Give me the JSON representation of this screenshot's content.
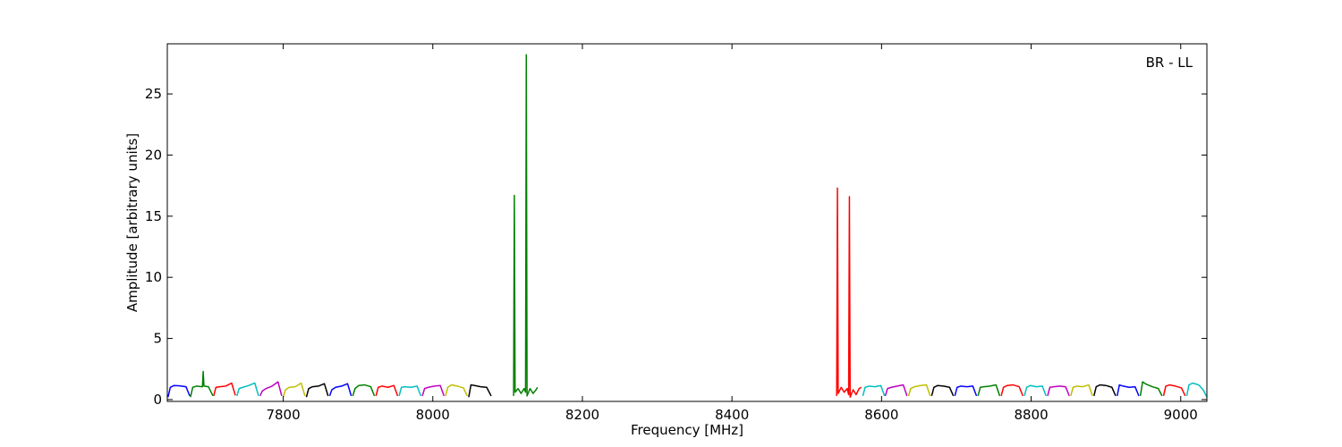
{
  "chart_data": {
    "type": "line",
    "annotation": "BR - LL",
    "x_label": "Frequency [MHz]",
    "y_label": "Amplitude [arbitrary units]",
    "xlim": [
      7645,
      9035
    ],
    "ylim": [
      -0.15,
      29.1
    ],
    "xticks": [
      7800,
      8000,
      8200,
      8400,
      8600,
      8800,
      9000
    ],
    "yticks": [
      0,
      5,
      10,
      15,
      20,
      25
    ],
    "grid": false,
    "series": [
      {
        "color": "#0000ff",
        "x": [
          7646,
          7649,
          7654,
          7662,
          7670,
          7675
        ],
        "values": [
          0.2,
          1.0,
          1.15,
          1.12,
          1.05,
          0.3
        ]
      },
      {
        "color": "#008000",
        "x": [
          7676,
          7679,
          7684,
          7692,
          7693,
          7694,
          7700,
          7706
        ],
        "values": [
          0.2,
          1.0,
          1.1,
          1.05,
          2.3,
          1.1,
          1.05,
          0.3
        ]
      },
      {
        "color": "#ff0000",
        "x": [
          7707,
          7710,
          7715,
          7723,
          7731,
          7736
        ],
        "values": [
          0.3,
          1.0,
          1.05,
          1.1,
          1.35,
          0.35
        ]
      },
      {
        "color": "#00bfbf",
        "x": [
          7738,
          7741,
          7746,
          7754,
          7762,
          7767
        ],
        "values": [
          0.3,
          0.9,
          1.0,
          1.15,
          1.35,
          0.3
        ]
      },
      {
        "color": "#bf00bf",
        "x": [
          7769,
          7772,
          7777,
          7785,
          7793,
          7798
        ],
        "values": [
          0.3,
          0.7,
          0.9,
          1.1,
          1.45,
          0.3
        ]
      },
      {
        "color": "#bfbf00",
        "x": [
          7800,
          7803,
          7808,
          7816,
          7824,
          7829
        ],
        "values": [
          0.2,
          0.8,
          1.0,
          1.05,
          1.35,
          0.3
        ]
      },
      {
        "color": "#000000",
        "x": [
          7831,
          7834,
          7839,
          7847,
          7855,
          7860
        ],
        "values": [
          0.2,
          0.9,
          1.05,
          1.1,
          1.3,
          0.3
        ]
      },
      {
        "color": "#0000ff",
        "x": [
          7862,
          7865,
          7870,
          7878,
          7886,
          7891
        ],
        "values": [
          0.3,
          0.8,
          1.0,
          1.1,
          1.3,
          0.3
        ]
      },
      {
        "color": "#008000",
        "x": [
          7893,
          7896,
          7901,
          7909,
          7917,
          7922
        ],
        "values": [
          0.3,
          0.9,
          1.15,
          1.2,
          1.05,
          0.3
        ]
      },
      {
        "color": "#ff0000",
        "x": [
          7924,
          7927,
          7932,
          7940,
          7948,
          7953
        ],
        "values": [
          0.3,
          1.0,
          1.1,
          1.0,
          1.15,
          0.3
        ]
      },
      {
        "color": "#00bfbf",
        "x": [
          7955,
          7958,
          7963,
          7971,
          7979,
          7984
        ],
        "values": [
          0.3,
          1.0,
          1.05,
          1.0,
          1.1,
          0.3
        ]
      },
      {
        "color": "#bf00bf",
        "x": [
          7986,
          7989,
          7994,
          8002,
          8010,
          8015
        ],
        "values": [
          0.3,
          0.9,
          1.0,
          1.1,
          1.15,
          0.3
        ]
      },
      {
        "color": "#bfbf00",
        "x": [
          8017,
          8020,
          8025,
          8033,
          8041,
          8046
        ],
        "values": [
          0.3,
          1.0,
          1.2,
          1.1,
          0.95,
          0.3
        ]
      },
      {
        "color": "#000000",
        "x": [
          8048,
          8051,
          8056,
          8064,
          8072,
          8078
        ],
        "values": [
          0.2,
          1.2,
          1.15,
          1.05,
          1.0,
          0.3
        ]
      },
      {
        "color": "#008000",
        "x": [
          8108,
          8109,
          8110,
          8114,
          8118,
          8122,
          8124,
          8125,
          8126,
          8130,
          8134,
          8138,
          8140
        ],
        "values": [
          0.3,
          16.7,
          0.6,
          0.9,
          0.5,
          0.9,
          0.6,
          28.2,
          0.3,
          0.9,
          0.5,
          0.8,
          1.0
        ]
      },
      {
        "color": "#ff0000",
        "x": [
          8540,
          8541,
          8542,
          8546,
          8550,
          8554,
          8556,
          8557,
          8558,
          8562,
          8566,
          8570,
          8573
        ],
        "values": [
          0.3,
          17.3,
          0.5,
          1.0,
          0.6,
          0.9,
          0.4,
          16.6,
          0.2,
          0.8,
          0.4,
          0.9,
          1.0
        ]
      },
      {
        "color": "#00bfbf",
        "x": [
          8575,
          8578,
          8583,
          8591,
          8599,
          8604
        ],
        "values": [
          0.3,
          1.0,
          1.1,
          1.05,
          1.15,
          0.3
        ]
      },
      {
        "color": "#bf00bf",
        "x": [
          8605,
          8608,
          8613,
          8621,
          8629,
          8634
        ],
        "values": [
          0.3,
          0.9,
          1.0,
          1.1,
          1.2,
          0.3
        ]
      },
      {
        "color": "#bfbf00",
        "x": [
          8636,
          8639,
          8644,
          8652,
          8660,
          8665
        ],
        "values": [
          0.3,
          0.9,
          1.05,
          1.15,
          1.2,
          0.3
        ]
      },
      {
        "color": "#000000",
        "x": [
          8667,
          8670,
          8675,
          8683,
          8691,
          8696
        ],
        "values": [
          0.3,
          1.0,
          1.15,
          1.1,
          1.0,
          0.3
        ]
      },
      {
        "color": "#0000ff",
        "x": [
          8698,
          8701,
          8706,
          8714,
          8722,
          8727
        ],
        "values": [
          0.3,
          1.0,
          1.1,
          1.05,
          1.1,
          0.3
        ]
      },
      {
        "color": "#008000",
        "x": [
          8729,
          8732,
          8737,
          8745,
          8753,
          8758
        ],
        "values": [
          0.3,
          1.0,
          1.05,
          1.1,
          1.2,
          0.3
        ]
      },
      {
        "color": "#ff0000",
        "x": [
          8760,
          8763,
          8768,
          8776,
          8784,
          8789
        ],
        "values": [
          0.3,
          1.0,
          1.15,
          1.2,
          1.05,
          0.3
        ]
      },
      {
        "color": "#00bfbf",
        "x": [
          8791,
          8794,
          8799,
          8807,
          8815,
          8820
        ],
        "values": [
          0.3,
          1.0,
          1.15,
          1.05,
          1.1,
          0.3
        ]
      },
      {
        "color": "#bf00bf",
        "x": [
          8822,
          8825,
          8830,
          8838,
          8846,
          8851
        ],
        "values": [
          0.3,
          1.0,
          1.05,
          1.1,
          1.05,
          0.3
        ]
      },
      {
        "color": "#bfbf00",
        "x": [
          8853,
          8856,
          8861,
          8869,
          8877,
          8882
        ],
        "values": [
          0.3,
          1.0,
          1.1,
          1.05,
          1.2,
          0.3
        ]
      },
      {
        "color": "#000000",
        "x": [
          8884,
          8887,
          8892,
          8900,
          8908,
          8913
        ],
        "values": [
          0.3,
          1.05,
          1.2,
          1.15,
          1.0,
          0.3
        ]
      },
      {
        "color": "#0000ff",
        "x": [
          8915,
          8918,
          8923,
          8931,
          8939,
          8944
        ],
        "values": [
          0.3,
          1.2,
          1.1,
          1.0,
          1.05,
          0.3
        ]
      },
      {
        "color": "#008000",
        "x": [
          8946,
          8949,
          8954,
          8962,
          8970,
          8975
        ],
        "values": [
          0.3,
          1.45,
          1.25,
          1.05,
          0.9,
          0.3
        ]
      },
      {
        "color": "#ff0000",
        "x": [
          8977,
          8980,
          8985,
          8993,
          9001,
          9006
        ],
        "values": [
          0.3,
          1.1,
          1.2,
          1.1,
          0.95,
          0.3
        ]
      },
      {
        "color": "#00bfbf",
        "x": [
          9008,
          9011,
          9016,
          9024,
          9030,
          9035
        ],
        "values": [
          0.3,
          1.2,
          1.35,
          1.2,
          0.8,
          0.2
        ]
      }
    ]
  }
}
